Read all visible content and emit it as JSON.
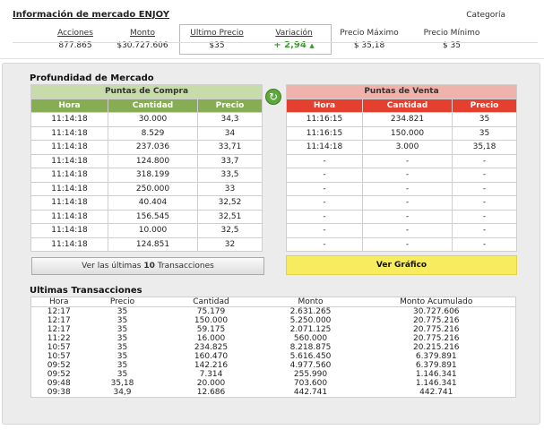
{
  "header": {
    "title": "Información de mercado ENJOY",
    "categoria_label": "Categoría",
    "stats": [
      {
        "label": "Acciones",
        "value": "877.865"
      },
      {
        "label": "Monto",
        "value": "$30.727.606"
      },
      {
        "label": "Ultimo Precio",
        "value": "$35"
      },
      {
        "label": "Variación",
        "value": "+ 2,94",
        "arrow": "▲"
      },
      {
        "label": "Precio Máximo",
        "value": "$ 35,18"
      },
      {
        "label": "Precio Mínimo",
        "value": "$ 35"
      }
    ]
  },
  "depth": {
    "title": "Profundidad de Mercado",
    "compra": {
      "title": "Puntas de Compra",
      "columns": [
        "Hora",
        "Cantidad",
        "Precio"
      ],
      "rows": [
        [
          "11:14:18",
          "30.000",
          "34,3"
        ],
        [
          "11:14:18",
          "8.529",
          "34"
        ],
        [
          "11:14:18",
          "237.036",
          "33,71"
        ],
        [
          "11:14:18",
          "124.800",
          "33,7"
        ],
        [
          "11:14:18",
          "318.199",
          "33,5"
        ],
        [
          "11:14:18",
          "250.000",
          "33"
        ],
        [
          "11:14:18",
          "40.404",
          "32,52"
        ],
        [
          "11:14:18",
          "156.545",
          "32,51"
        ],
        [
          "11:14:18",
          "10.000",
          "32,5"
        ],
        [
          "11:14:18",
          "124.851",
          "32"
        ]
      ]
    },
    "venta": {
      "title": "Puntas de Venta",
      "columns": [
        "Hora",
        "Cantidad",
        "Precio"
      ],
      "rows": [
        [
          "11:16:15",
          "234.821",
          "35"
        ],
        [
          "11:16:15",
          "150.000",
          "35"
        ],
        [
          "11:14:18",
          "3.000",
          "35,18"
        ],
        [
          "-",
          "-",
          "-"
        ],
        [
          "-",
          "-",
          "-"
        ],
        [
          "-",
          "-",
          "-"
        ],
        [
          "-",
          "-",
          "-"
        ],
        [
          "-",
          "-",
          "-"
        ],
        [
          "-",
          "-",
          "-"
        ],
        [
          "-",
          "-",
          "-"
        ]
      ]
    }
  },
  "buttons": {
    "trans_prefix": "Ver las últimas ",
    "trans_count": "10",
    "trans_suffix": " Transacciones",
    "grafico": "Ver Gráfico"
  },
  "transactions": {
    "title": "Ultimas Transacciones",
    "columns": [
      "Hora",
      "Precio",
      "Cantidad",
      "Monto",
      "Monto Acumulado"
    ],
    "rows": [
      [
        "12:17",
        "35",
        "75.179",
        "2.631.265",
        "30.727.606"
      ],
      [
        "12:17",
        "35",
        "150.000",
        "5.250.000",
        "20.775.216"
      ],
      [
        "12:17",
        "35",
        "59.175",
        "2.071.125",
        "20.775.216"
      ],
      [
        "11:22",
        "35",
        "16.000",
        "560.000",
        "20.775.216"
      ],
      [
        "10:57",
        "35",
        "234.825",
        "8.218.875",
        "20.215.216"
      ],
      [
        "10:57",
        "35",
        "160.470",
        "5.616.450",
        "6.379.891"
      ],
      [
        "09:52",
        "35",
        "142.216",
        "4.977.560",
        "6.379.891"
      ],
      [
        "09:52",
        "35",
        "7.314",
        "255.990",
        "1.146.341"
      ],
      [
        "09:48",
        "35,18",
        "20.000",
        "703.600",
        "1.146.341"
      ],
      [
        "09:38",
        "34,9",
        "12.686",
        "442.741",
        "442.741"
      ]
    ]
  },
  "colors": {
    "compra_header": "#86ad54",
    "venta_header": "#e5402f",
    "grafico_button": "#f7ec5f",
    "positive": "#3a9a2a"
  },
  "icons": {
    "refresh": "refresh-icon",
    "up_arrow": "arrow-up-icon"
  }
}
